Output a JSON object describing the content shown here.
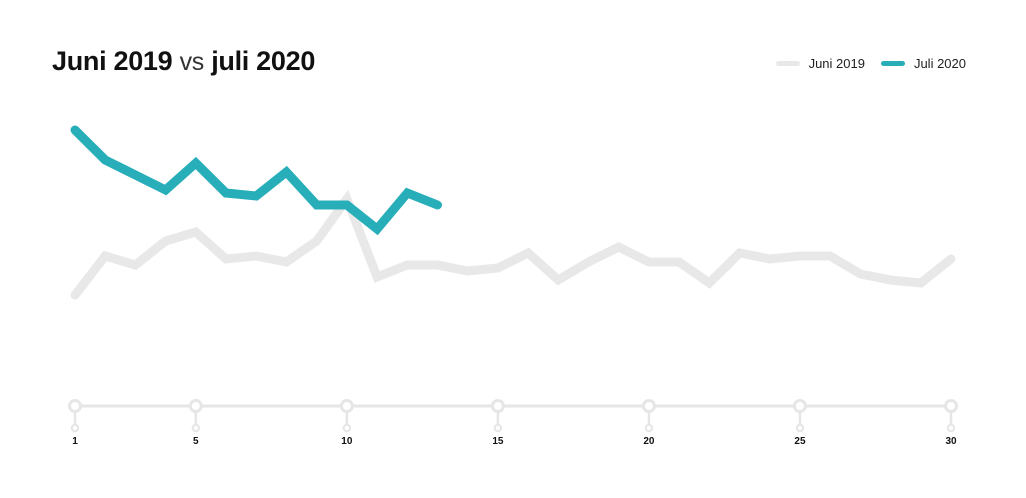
{
  "title": {
    "part1": "Juni 2019",
    "part2": "vs",
    "part3": "juli 2020"
  },
  "colors": {
    "juni2019": "#e8e8e8",
    "juli2020": "#27aeb9",
    "axis": "#e6e6e6"
  },
  "chart_data": {
    "type": "line",
    "title": "Juni 2019 vs juli 2020",
    "xlabel": "",
    "ylabel": "",
    "xlim": [
      1,
      30
    ],
    "ylim": [
      0,
      100
    ],
    "x_ticks": [
      1,
      5,
      10,
      15,
      20,
      25,
      30
    ],
    "grid": false,
    "legend_position": "top-right",
    "series": [
      {
        "name": "Juni 2019",
        "x": [
          1,
          2,
          3,
          4,
          5,
          6,
          7,
          8,
          9,
          10,
          11,
          12,
          13,
          14,
          15,
          16,
          17,
          18,
          19,
          20,
          21,
          22,
          23,
          24,
          25,
          26,
          27,
          28,
          29,
          30
        ],
        "values": [
          30,
          43,
          40,
          48,
          51,
          42,
          43,
          41,
          48,
          62,
          36,
          40,
          40,
          38,
          39,
          44,
          35,
          41,
          46,
          41,
          41,
          34,
          44,
          42,
          43,
          43,
          37,
          35,
          34,
          42
        ]
      },
      {
        "name": "Juli 2020",
        "x": [
          1,
          2,
          3,
          4,
          5,
          6,
          7,
          8,
          9,
          10,
          11,
          12,
          13
        ],
        "values": [
          85,
          75,
          70,
          65,
          74,
          64,
          63,
          71,
          60,
          60,
          52,
          64,
          60
        ]
      }
    ]
  }
}
